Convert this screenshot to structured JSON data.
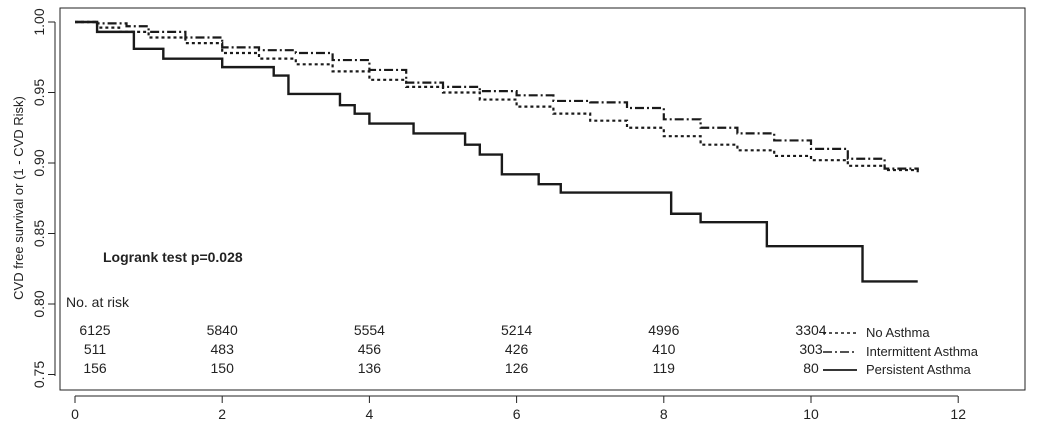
{
  "chart_data": {
    "type": "line",
    "title": "",
    "xlabel": "",
    "ylabel": "CVD free survival or (1 - CVD Risk)",
    "xlim": [
      0,
      13
    ],
    "ylim": [
      0.74,
      1.0
    ],
    "x_ticks": [
      0,
      2,
      4,
      6,
      8,
      10,
      12
    ],
    "y_ticks": [
      0.75,
      0.8,
      0.85,
      0.9,
      0.95,
      1.0
    ],
    "x_tick_labels": [
      "0",
      "2",
      "4",
      "6",
      "8",
      "10",
      "12"
    ],
    "y_tick_labels": [
      "0.75",
      "0.80",
      "0.85",
      "0.90",
      "0.95",
      "1.00"
    ],
    "grid": false,
    "step": true,
    "annotation": "Logrank test p=0.028",
    "legend_position": "bottom-right",
    "series": [
      {
        "name": "No Asthma",
        "style": "dotted",
        "x": [
          0,
          0.3,
          0.6,
          1.0,
          1.5,
          2.0,
          2.5,
          3.0,
          3.5,
          4.0,
          4.5,
          5.0,
          5.5,
          6.0,
          6.5,
          7.0,
          7.5,
          8.0,
          8.5,
          9.0,
          9.5,
          10.0,
          10.5,
          11.0,
          11.45
        ],
        "y": [
          1.0,
          0.996,
          0.993,
          0.989,
          0.985,
          0.978,
          0.974,
          0.97,
          0.965,
          0.959,
          0.954,
          0.95,
          0.945,
          0.94,
          0.935,
          0.93,
          0.925,
          0.919,
          0.913,
          0.909,
          0.905,
          0.902,
          0.898,
          0.895,
          0.893
        ]
      },
      {
        "name": "Intermittent Asthma",
        "style": "dashdot",
        "x": [
          0,
          0.3,
          0.7,
          1.0,
          1.5,
          2.0,
          2.5,
          3.0,
          3.5,
          4.0,
          4.5,
          5.0,
          5.5,
          6.0,
          6.5,
          7.0,
          7.5,
          8.0,
          8.5,
          9.0,
          9.5,
          10.0,
          10.5,
          11.0,
          11.45
        ],
        "y": [
          1.0,
          0.999,
          0.997,
          0.993,
          0.989,
          0.982,
          0.98,
          0.978,
          0.973,
          0.966,
          0.957,
          0.954,
          0.951,
          0.948,
          0.944,
          0.943,
          0.939,
          0.931,
          0.925,
          0.921,
          0.916,
          0.91,
          0.903,
          0.896,
          0.895
        ]
      },
      {
        "name": "Persistent Asthma",
        "style": "solid",
        "x": [
          0,
          0.3,
          0.8,
          1.2,
          2.0,
          2.7,
          2.9,
          3.6,
          3.8,
          4.0,
          4.6,
          5.3,
          5.5,
          5.8,
          6.3,
          6.6,
          8.1,
          8.5,
          9.4,
          10.7,
          11.45
        ],
        "y": [
          1.0,
          0.993,
          0.981,
          0.974,
          0.968,
          0.962,
          0.949,
          0.941,
          0.935,
          0.928,
          0.921,
          0.913,
          0.906,
          0.892,
          0.885,
          0.879,
          0.864,
          0.858,
          0.841,
          0.816,
          0.816
        ]
      }
    ],
    "risk_table": {
      "header": "No. at risk",
      "x": [
        0,
        2,
        4,
        6,
        8,
        10
      ],
      "rows": [
        {
          "name": "No Asthma",
          "counts": [
            "6125",
            "5840",
            "5554",
            "5214",
            "4996",
            "3304"
          ]
        },
        {
          "name": "Intermittent Asthma",
          "counts": [
            "511",
            "483",
            "456",
            "426",
            "410",
            "303"
          ]
        },
        {
          "name": "Persistent Asthma",
          "counts": [
            "156",
            "150",
            "136",
            "126",
            "119",
            "80"
          ]
        }
      ]
    }
  }
}
